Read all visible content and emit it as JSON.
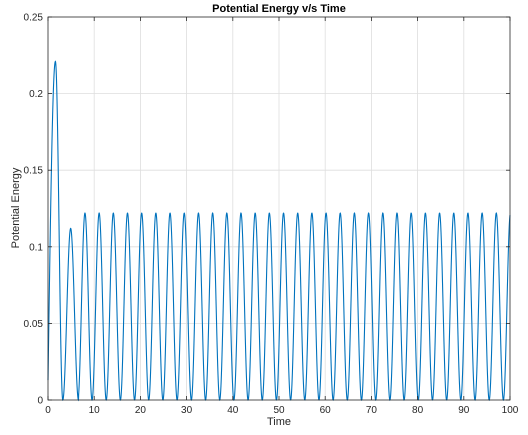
{
  "chart_data": {
    "type": "line",
    "title": "Potential Energy v/s Time",
    "xlabel": "Time",
    "ylabel": "Potential Energy",
    "xlim": [
      0,
      100
    ],
    "ylim": [
      0,
      0.25
    ],
    "xticks": [
      0,
      10,
      20,
      30,
      40,
      50,
      60,
      70,
      80,
      90,
      100
    ],
    "yticks": [
      0,
      0.05,
      0.1,
      0.15,
      0.2,
      0.25
    ],
    "xtick_labels": [
      "0",
      "10",
      "20",
      "30",
      "40",
      "50",
      "60",
      "70",
      "80",
      "90",
      "100"
    ],
    "ytick_labels": [
      "0",
      "0.05",
      "0.1",
      "0.15",
      "0.2",
      "0.25"
    ],
    "grid": true,
    "series": [
      {
        "color": "#0072bd",
        "peaks": [
          {
            "t": 1.6,
            "value": 0.221
          },
          {
            "t": 4.9,
            "value": 0.112
          },
          {
            "t": 8.0,
            "value": 0.122
          }
        ],
        "steady_state": {
          "amplitude": 0.122,
          "period": 3.07,
          "from_t": 6.5,
          "to_t": 100
        },
        "start_value": 0.013
      }
    ]
  }
}
